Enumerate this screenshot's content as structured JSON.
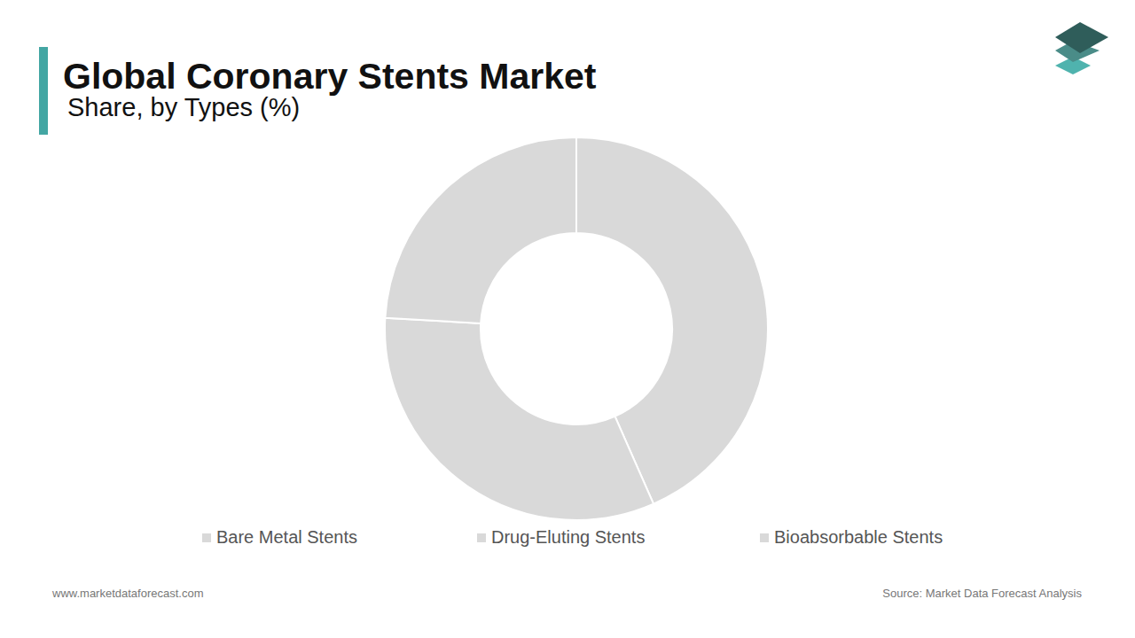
{
  "chart_data": {
    "type": "donut",
    "title": "Global Coronary Stents Market",
    "subtitle": "Share, by Types (%)",
    "categories": [
      "Bare Metal Stents",
      "Drug-Eluting Stents",
      "Bioabsorbable Stents"
    ],
    "values": [
      43.4,
      32.5,
      24.1
    ],
    "colors": [
      "#d9d9d9",
      "#d9d9d9",
      "#d9d9d9"
    ],
    "legend": "bottom"
  },
  "footer": {
    "left": "www.marketdataforecast.com",
    "right": "Source: Market Data Forecast Analysis"
  }
}
